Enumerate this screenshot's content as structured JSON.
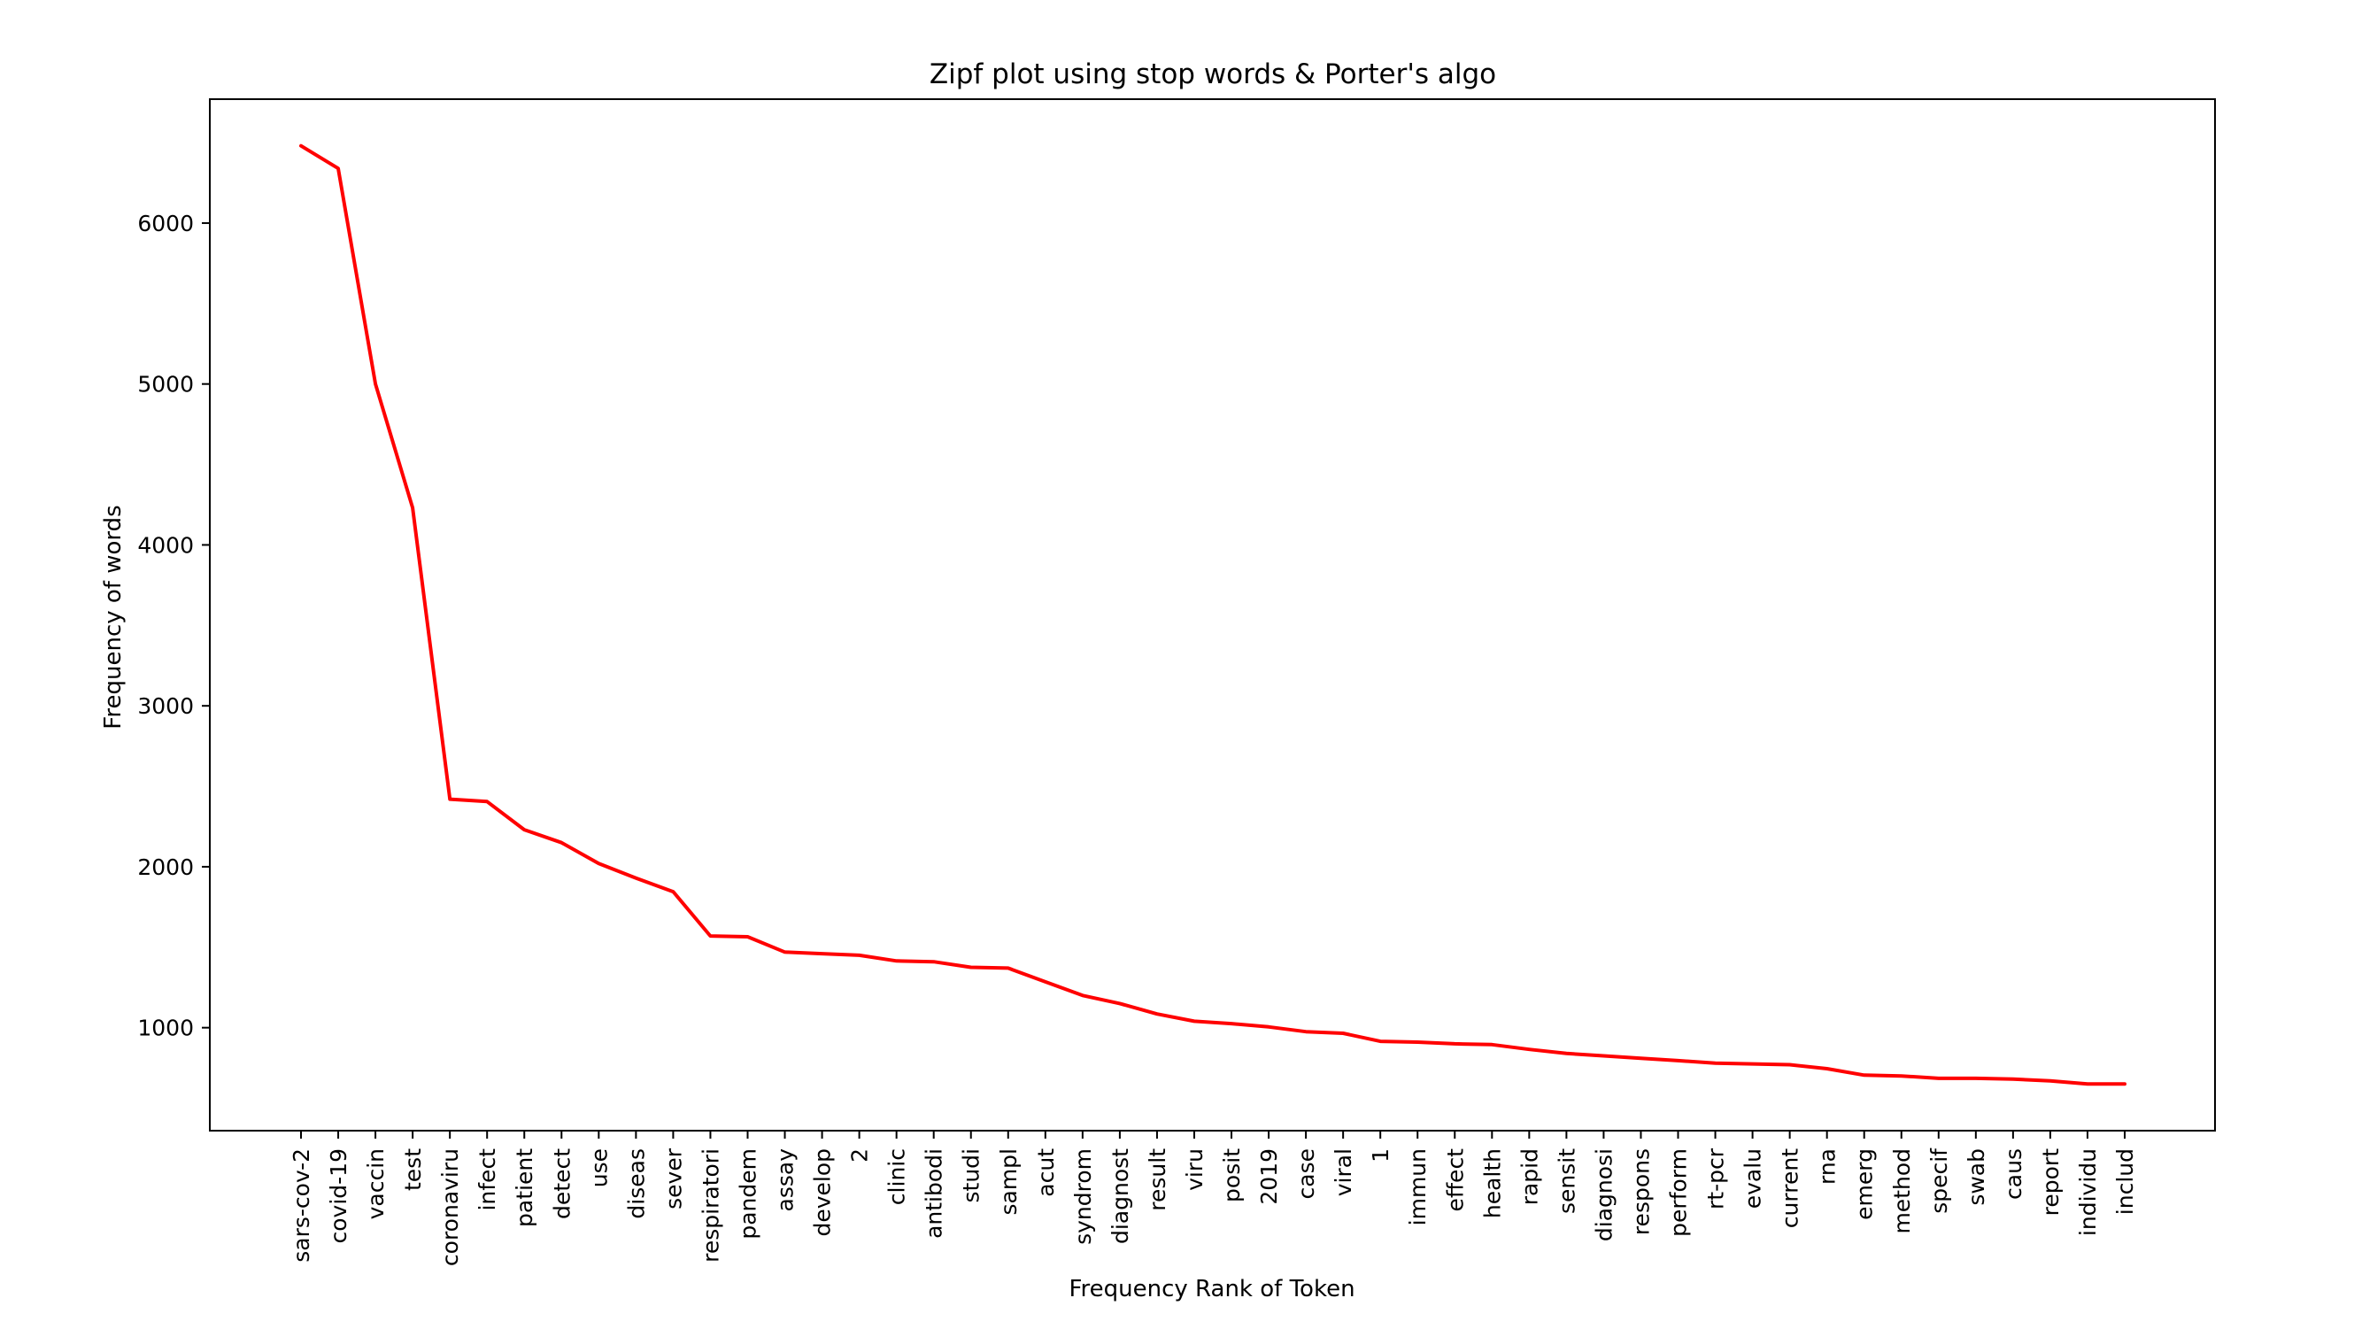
{
  "chart_data": {
    "type": "line",
    "title": "Zipf plot using stop words & Porter's algo",
    "xlabel": "Frequency Rank of Token",
    "ylabel": "Frequency of words",
    "categories": [
      "sars-cov-2",
      "covid-19",
      "vaccin",
      "test",
      "coronaviru",
      "infect",
      "patient",
      "detect",
      "use",
      "diseas",
      "sever",
      "respiratori",
      "pandem",
      "assay",
      "develop",
      "2",
      "clinic",
      "antibodi",
      "studi",
      "sampl",
      "acut",
      "syndrom",
      "diagnost",
      "result",
      "viru",
      "posit",
      "2019",
      "case",
      "viral",
      "1",
      "immun",
      "effect",
      "health",
      "rapid",
      "sensit",
      "diagnosi",
      "respons",
      "perform",
      "rt-pcr",
      "evalu",
      "current",
      "rna",
      "emerg",
      "method",
      "specif",
      "swab",
      "caus",
      "report",
      "individu",
      "includ"
    ],
    "series": [
      {
        "values": [
          6480,
          6340,
          5000,
          4230,
          2420,
          2405,
          2230,
          2150,
          2020,
          1930,
          1845,
          1570,
          1565,
          1470,
          1460,
          1450,
          1415,
          1410,
          1375,
          1370,
          1285,
          1200,
          1150,
          1085,
          1040,
          1025,
          1005,
          975,
          965,
          915,
          910,
          900,
          895,
          865,
          840,
          825,
          810,
          795,
          780,
          775,
          770,
          745,
          705,
          700,
          685,
          685,
          680,
          670,
          650,
          650
        ],
        "color": "#ff0000"
      }
    ],
    "yticks": [
      1000,
      2000,
      3000,
      4000,
      5000,
      6000
    ],
    "ylim": [
      360,
      6770
    ],
    "grid": false,
    "legend": "none"
  }
}
